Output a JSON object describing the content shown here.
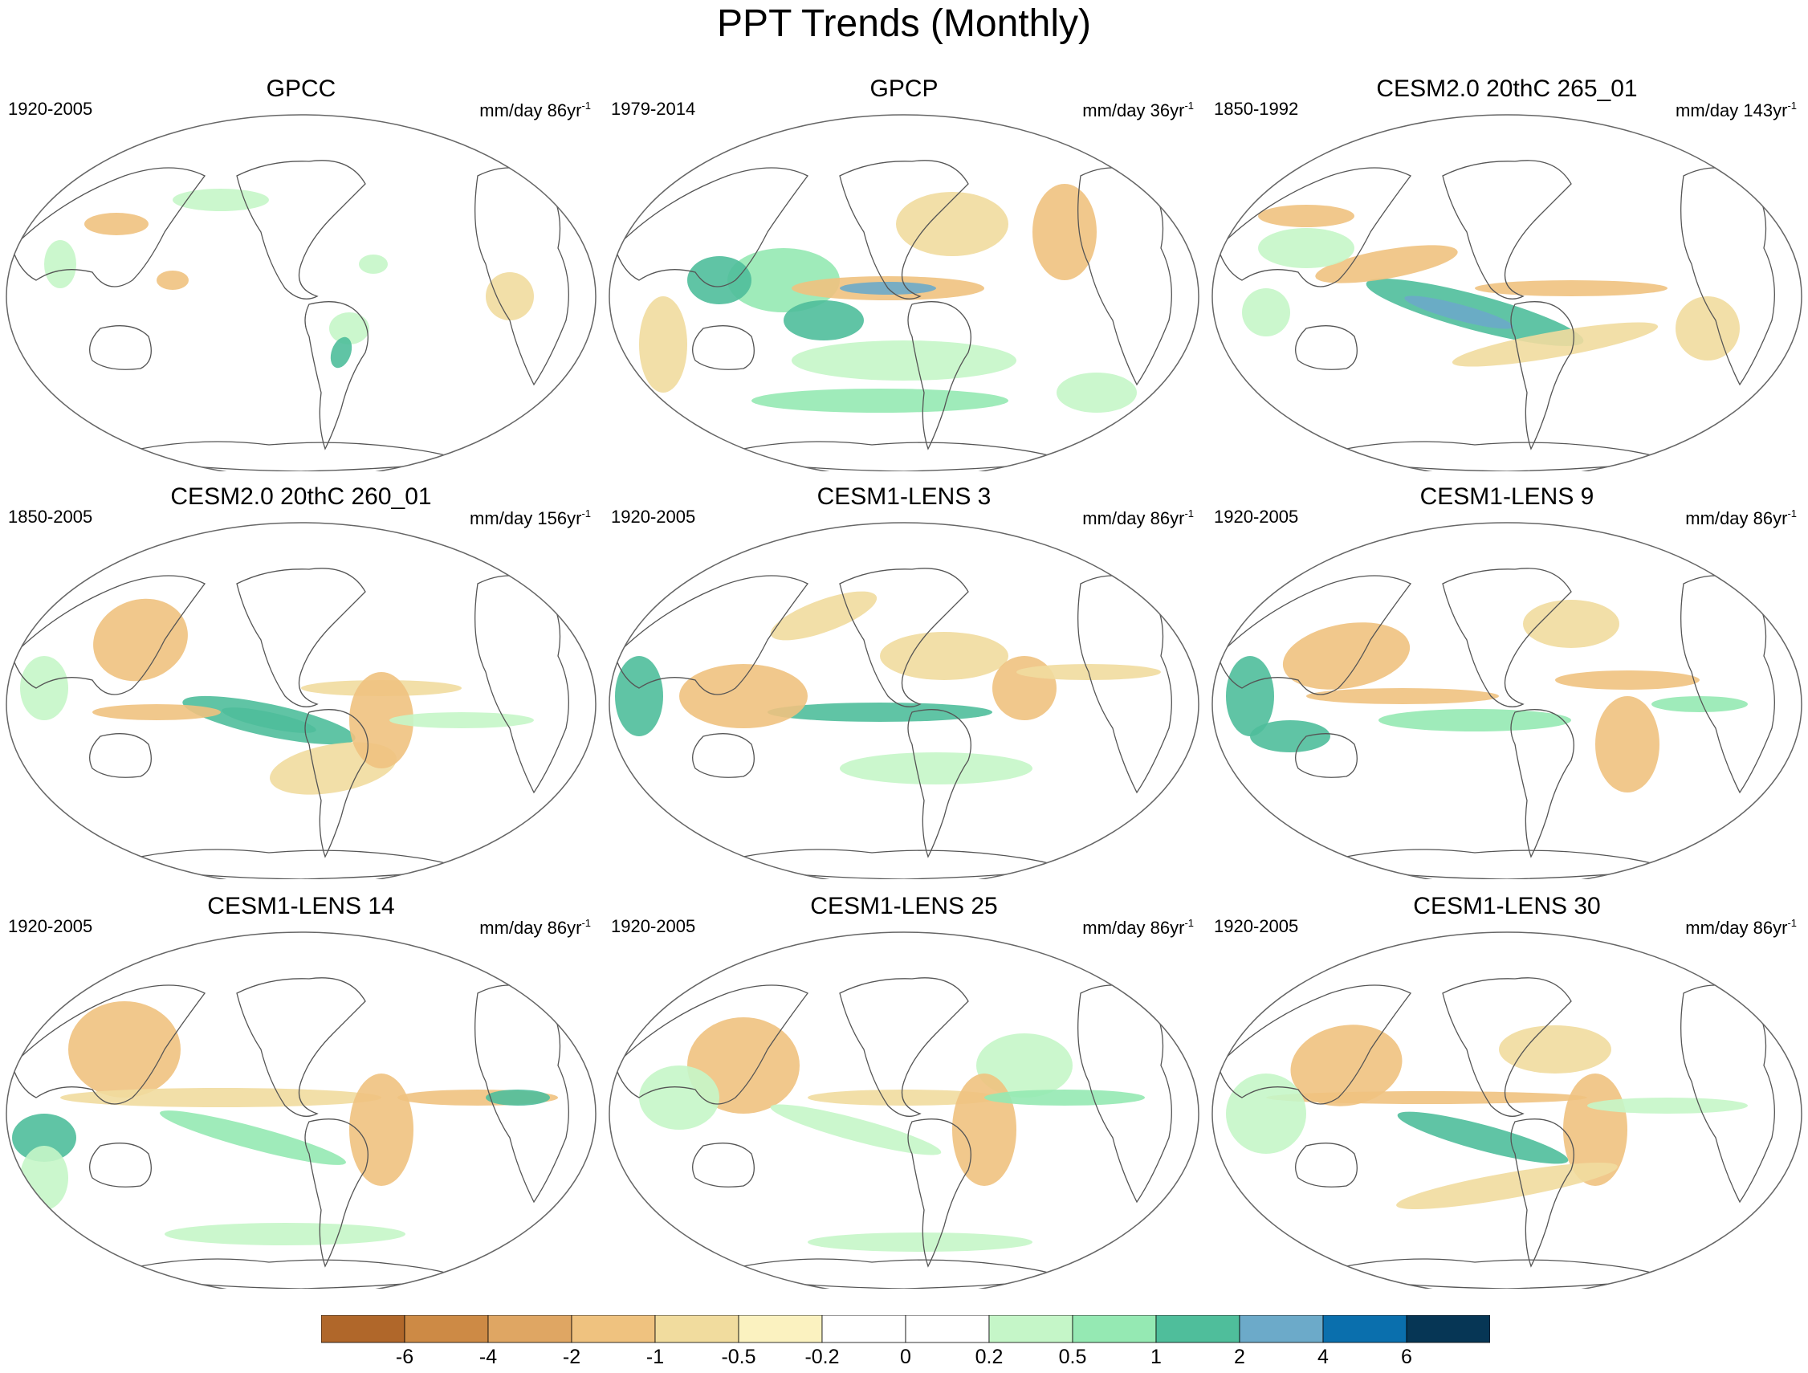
{
  "title": "PPT Trends (Monthly)",
  "panels": [
    {
      "title": "GPCC",
      "period": "1920-2005",
      "units": "mm/day 86yr",
      "units_exp": "-1"
    },
    {
      "title": "GPCP",
      "period": "1979-2014",
      "units": "mm/day 36yr",
      "units_exp": "-1"
    },
    {
      "title": "CESM2.0 20thC 265_01",
      "period": "1850-1992",
      "units": "mm/day 143yr",
      "units_exp": "-1"
    },
    {
      "title": "CESM2.0 20thC 260_01",
      "period": "1850-2005",
      "units": "mm/day 156yr",
      "units_exp": "-1"
    },
    {
      "title": "CESM1-LENS 3",
      "period": "1920-2005",
      "units": "mm/day 86yr",
      "units_exp": "-1"
    },
    {
      "title": "CESM1-LENS 9",
      "period": "1920-2005",
      "units": "mm/day 86yr",
      "units_exp": "-1"
    },
    {
      "title": "CESM1-LENS 14",
      "period": "1920-2005",
      "units": "mm/day 86yr",
      "units_exp": "-1"
    },
    {
      "title": "CESM1-LENS 25",
      "period": "1920-2005",
      "units": "mm/day 86yr",
      "units_exp": "-1"
    },
    {
      "title": "CESM1-LENS 30",
      "period": "1920-2005",
      "units": "mm/day 86yr",
      "units_exp": "-1"
    }
  ],
  "colorbar": {
    "labels": [
      "-6",
      "-4",
      "-2",
      "-1",
      "-0.5",
      "-0.2",
      "0",
      "0.2",
      "0.5",
      "1",
      "2",
      "4",
      "6"
    ],
    "colors": [
      "#b0672a",
      "#cd8a45",
      "#dfa663",
      "#efc27f",
      "#f1dc9e",
      "#fbf2c0",
      "#ffffff",
      "#ffffff",
      "#c5f6c8",
      "#95e9b3",
      "#4fbe9b",
      "#6caac9",
      "#0a6fad",
      "#063655"
    ]
  },
  "colors": {
    "dry_strong": "#cd8a45",
    "dry": "#efc27f",
    "dry_weak": "#f1dc9e",
    "wet_weak": "#c5f6c8",
    "wet": "#95e9b3",
    "wet_strong": "#4fbe9b",
    "wet_max": "#6caac9",
    "coast": "#555555",
    "frame": "#666666"
  }
}
